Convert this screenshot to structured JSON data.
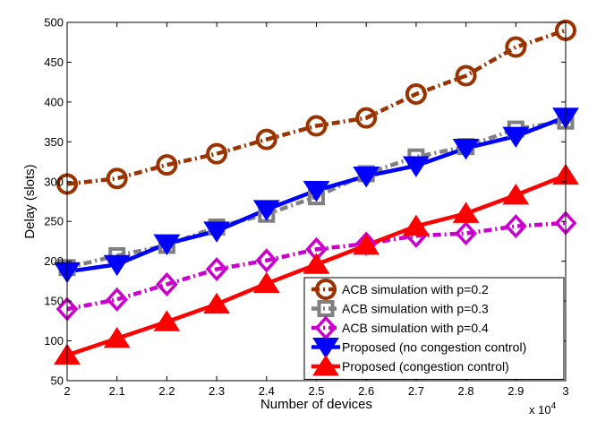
{
  "chart_data": {
    "type": "line",
    "xlabel": "Number of devices",
    "ylabel": "Delay (slots)",
    "x_multiplier_label": "x 10",
    "x_multiplier_exponent": "4",
    "xlim": [
      2,
      3
    ],
    "ylim": [
      50,
      500
    ],
    "x_ticks": [
      2,
      2.1,
      2.2,
      2.3,
      2.4,
      2.5,
      2.6,
      2.7,
      2.8,
      2.9,
      3
    ],
    "x_tick_labels": [
      "2",
      "2.1",
      "2.2",
      "2.3",
      "2.4",
      "2.5",
      "2.6",
      "2.7",
      "2.8",
      "2.9",
      "3"
    ],
    "y_ticks": [
      50,
      100,
      150,
      200,
      250,
      300,
      350,
      400,
      450,
      500
    ],
    "y_tick_labels": [
      "50",
      "100",
      "150",
      "200",
      "250",
      "300",
      "350",
      "400",
      "450",
      "500"
    ],
    "grid": false,
    "legend_position": "bottom-right",
    "x": [
      2,
      2.1,
      2.2,
      2.3,
      2.4,
      2.5,
      2.6,
      2.7,
      2.8,
      2.9,
      3
    ],
    "series": [
      {
        "name": "ACB simulation with p=0.2",
        "values": [
          297,
          304,
          321,
          335,
          353,
          370,
          380,
          410,
          433,
          469,
          490
        ],
        "color": "#993300",
        "marker": "circle",
        "line_style": "dash-dot"
      },
      {
        "name": "ACB simulation with p=0.3",
        "values": [
          192,
          207,
          220,
          243,
          259,
          281,
          310,
          331,
          344,
          366,
          376
        ],
        "color": "#808080",
        "marker": "square",
        "line_style": "dash-dot"
      },
      {
        "name": "ACB simulation with p=0.4",
        "values": [
          140,
          152,
          171,
          190,
          201,
          215,
          222,
          232,
          235,
          244,
          248
        ],
        "color": "#cc00cc",
        "marker": "diamond",
        "line_style": "dash-dot"
      },
      {
        "name": "Proposed (no congestion control)",
        "values": [
          187,
          196,
          222,
          238,
          265,
          289,
          307,
          320,
          342,
          357,
          381
        ],
        "color": "#0000ff",
        "marker": "triangle-down",
        "line_style": "solid"
      },
      {
        "name": "Proposed (congestion control)",
        "values": [
          82,
          103,
          124,
          146,
          172,
          196,
          220,
          244,
          260,
          283,
          308
        ],
        "color": "#ff0000",
        "marker": "triangle-up",
        "line_style": "solid"
      }
    ]
  }
}
